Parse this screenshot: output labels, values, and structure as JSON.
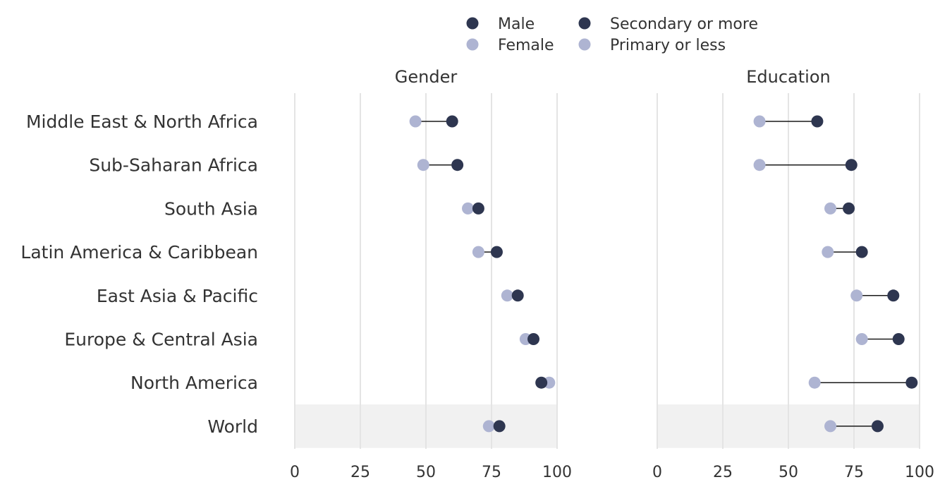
{
  "legend": [
    {
      "label": "Male",
      "color": "#2e3650"
    },
    {
      "label": "Female",
      "color": "#aeb4d2"
    },
    {
      "label": "Secondary or more",
      "color": "#2e3650"
    },
    {
      "label": "Primary or less",
      "color": "#aeb4d2"
    }
  ],
  "chart_data": {
    "type": "scatter",
    "subtype": "dumbbell",
    "categories": [
      "Middle East & North Africa",
      "Sub-Saharan Africa",
      "South Asia",
      "Latin America & Caribbean",
      "East Asia & Pacific",
      "Europe & Central Asia",
      "North America",
      "World"
    ],
    "highlight_category": "World",
    "xlim": [
      0,
      100
    ],
    "xticks": [
      0,
      25,
      50,
      75,
      100
    ],
    "grid": true,
    "legend_position": "top-center",
    "panels": [
      {
        "title": "Gender",
        "series": [
          {
            "name": "Male",
            "color": "#2e3650",
            "values": [
              60,
              62,
              70,
              77,
              85,
              91,
              94,
              78
            ]
          },
          {
            "name": "Female",
            "color": "#aeb4d2",
            "values": [
              46,
              49,
              66,
              70,
              81,
              88,
              97,
              74
            ]
          }
        ]
      },
      {
        "title": "Education",
        "series": [
          {
            "name": "Secondary or more",
            "color": "#2e3650",
            "values": [
              61,
              74,
              73,
              78,
              90,
              92,
              97,
              84
            ]
          },
          {
            "name": "Primary or less",
            "color": "#aeb4d2",
            "values": [
              39,
              39,
              66,
              65,
              76,
              78,
              60,
              66
            ]
          }
        ]
      }
    ]
  }
}
